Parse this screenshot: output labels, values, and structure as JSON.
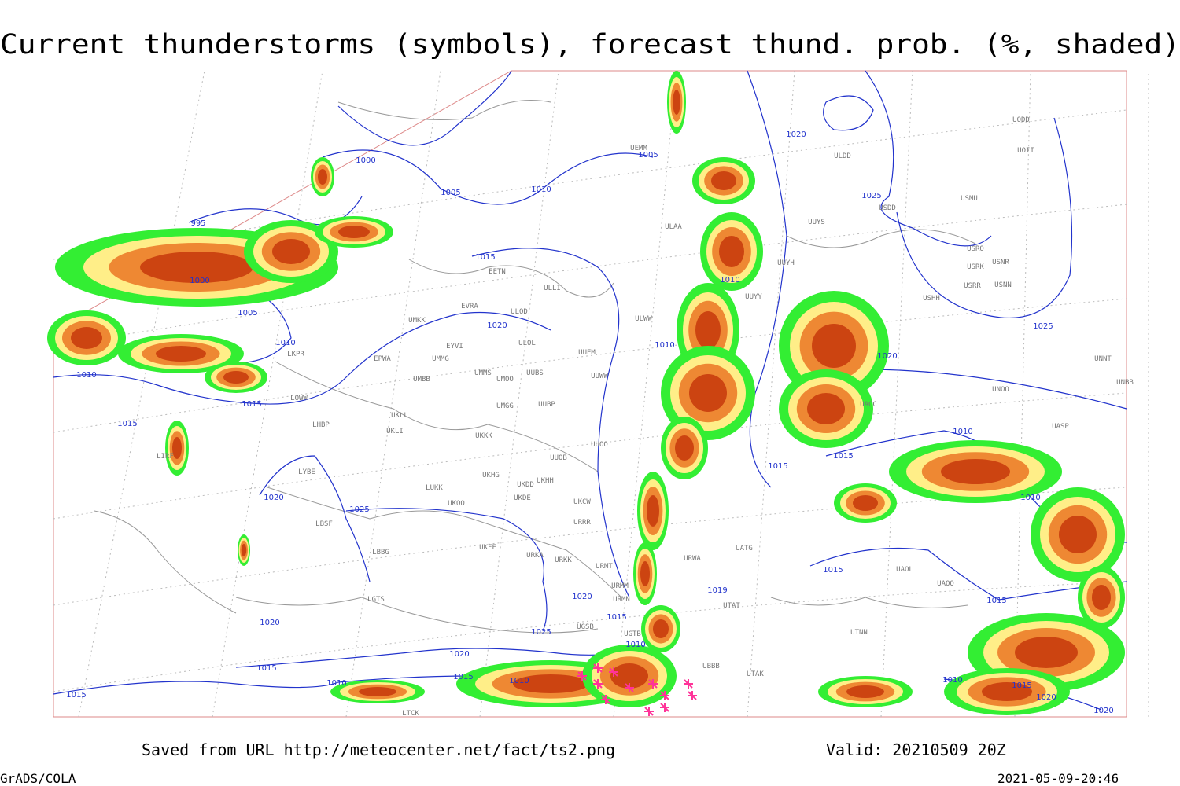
{
  "header": {
    "title": "Current thunderstorms (symbols), forecast thund. prob. (%, shaded)"
  },
  "isobar_labels": [
    1000,
    1005,
    1010,
    1005,
    995,
    1000,
    1005,
    1010,
    1010,
    1015,
    1015,
    1015,
    1020,
    1020,
    1025,
    1010,
    1010,
    1020,
    1015,
    1015,
    1010,
    1010,
    1025,
    1020,
    1025,
    1020,
    1015,
    1010,
    1019,
    1015,
    1015,
    1020,
    1025,
    1020,
    1015,
    1015,
    1010,
    1010,
    1015,
    1010,
    1015,
    1020,
    1020
  ],
  "station_labels": [
    "UEMM",
    "ULDD",
    "ULAA",
    "UUYS",
    "UUYH",
    "UUYY",
    "USMU",
    "USDD",
    "USRO",
    "USRK",
    "USNR",
    "USRR",
    "USNN",
    "USHH",
    "UODD",
    "UOII",
    "EETN",
    "ULLI",
    "EVRA",
    "ULOD",
    "UMKK",
    "ULWW",
    "EPWA",
    "UMMG",
    "UUEM",
    "ULOL",
    "EYVI",
    "UMMS",
    "UMOO",
    "UUBS",
    "UUWW",
    "UMBB",
    "UMGG",
    "UUBP",
    "LKPR",
    "LOWW",
    "LHBP",
    "UKLL",
    "UKLI",
    "UKKK",
    "UUOO",
    "UUOB",
    "LIRF",
    "LYBE",
    "UKHG",
    "UKHH",
    "UKDD",
    "LUKK",
    "UKOO",
    "UKDE",
    "UKCW",
    "URRR",
    "LBSF",
    "LBBG",
    "UKFF",
    "URKA",
    "URKK",
    "URMT",
    "URMM",
    "URMN",
    "LGTS",
    "UGTB",
    "UGSB",
    "UNNT",
    "UNBB",
    "UNOO",
    "UASP",
    "UACC",
    "UAOL",
    "UAOO",
    "UTAT",
    "UATG",
    "URWA",
    "UBBB",
    "UTAK",
    "UTNN",
    "LTCK"
  ],
  "footer": {
    "source": "Saved from URL http://meteocenter.net/fact/ts2.png",
    "valid": "Valid: 20210509 20Z",
    "software": "GrADS/COLA",
    "timestamp": "2021-05-09-20:46"
  }
}
